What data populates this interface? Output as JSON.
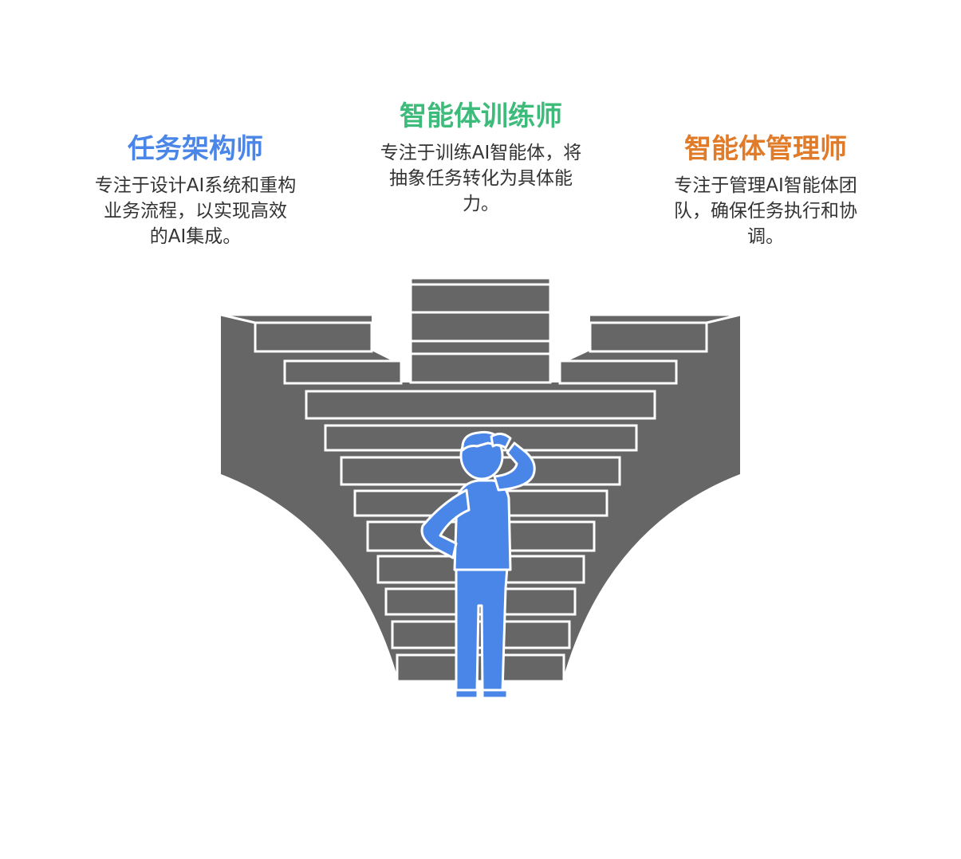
{
  "roles": {
    "left": {
      "title": "任务架构师",
      "color": "#4a86e8",
      "desc_lines": [
        "专注于设计AI系统和重构",
        "业务流程，以实现高效",
        "的AI集成。"
      ]
    },
    "center": {
      "title": "智能体训练师",
      "color": "#3dbb7a",
      "desc_lines": [
        "专注于训练AI智能体，将",
        "抽象任务转化为具体能",
        "力。"
      ]
    },
    "right": {
      "title": "智能体管理师",
      "color": "#e07b2a",
      "desc_lines": [
        "专注于管理AI智能体团",
        "队，确保任务执行和协",
        "调。"
      ]
    }
  },
  "colors": {
    "structure": "#666666",
    "step_edge": "#ffffff",
    "person": "#4a86e8"
  }
}
